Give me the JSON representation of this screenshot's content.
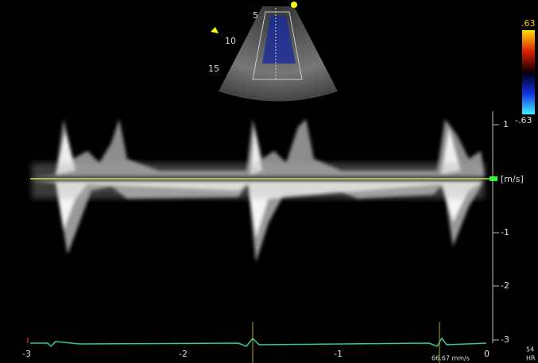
{
  "scale": {
    "top": ".63",
    "bottom": "-.63"
  },
  "depth_labels": [
    "5",
    "10",
    "15"
  ],
  "velocity_labels": [
    "1",
    "[m/s]",
    "-1",
    "-2",
    "-3"
  ],
  "time_labels": [
    "-3",
    "-2",
    "-1",
    "0"
  ],
  "sweep_speed": "66.67 mm/s",
  "heart_rate": {
    "value": "54",
    "unit": "HR"
  }
}
